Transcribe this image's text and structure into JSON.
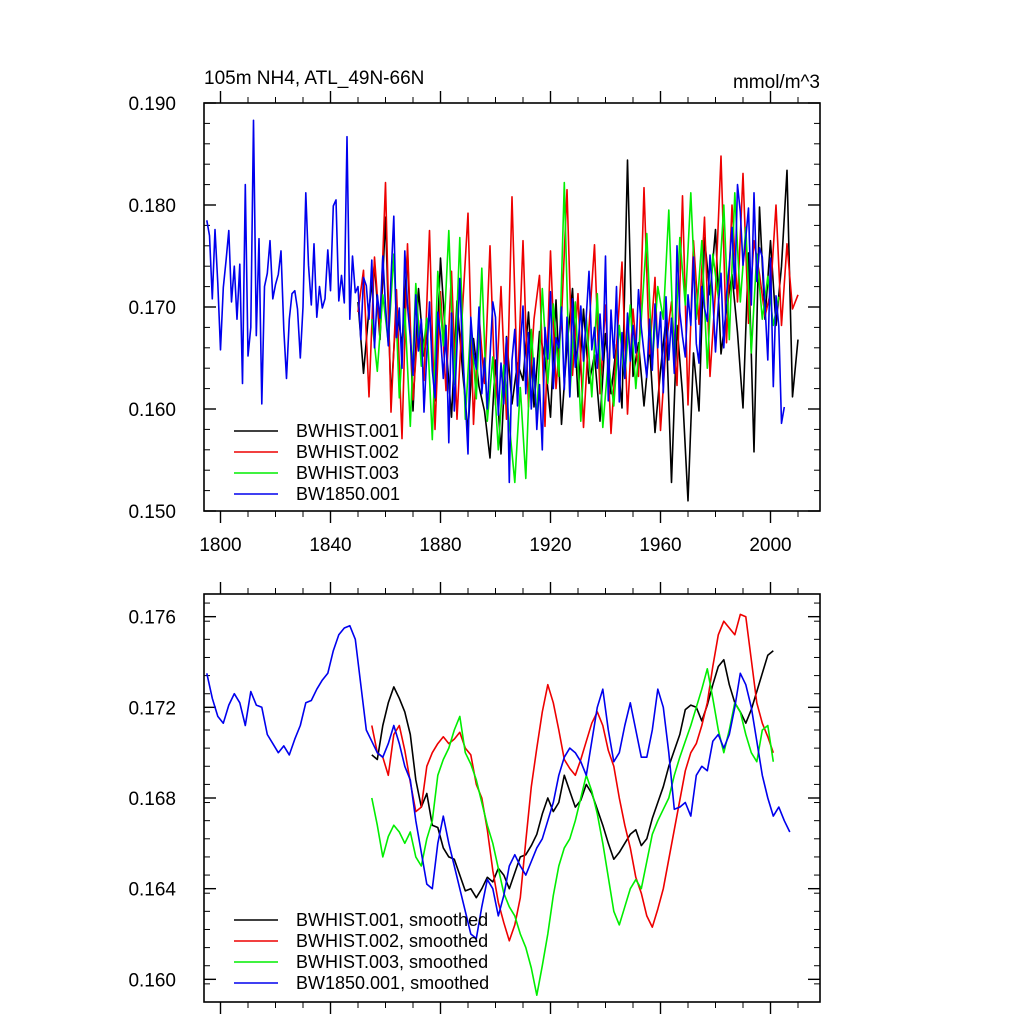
{
  "colors": {
    "BWHIST.001": "#000000",
    "BWHIST.002": "#ee0000",
    "BWHIST.003": "#00ee00",
    "BW1850.001": "#0000ee"
  },
  "chart_data": [
    {
      "type": "line",
      "title": "105m NH4, ATL_49N-66N",
      "units": "mmol/m^3",
      "xlabel": "",
      "ylabel": "",
      "xlim": [
        1794,
        2018
      ],
      "ylim": [
        0.15,
        0.19
      ],
      "xticks": [
        1800,
        1840,
        1880,
        1920,
        1960,
        2000
      ],
      "yticks": [
        0.15,
        0.16,
        0.17,
        0.18,
        0.19
      ],
      "ytick_labels": [
        "0.150",
        "0.160",
        "0.170",
        "0.180",
        "0.190"
      ],
      "legend": [
        "BWHIST.001",
        "BWHIST.002",
        "BWHIST.003",
        "BW1850.001"
      ],
      "legend_position": "bottom-left",
      "series": [
        {
          "name": "BWHIST.001",
          "x_start": 1850,
          "x_step": 2,
          "values": [
            0.1705,
            0.1635,
            0.1698,
            0.1742,
            0.1668,
            0.1788,
            0.161,
            0.1703,
            0.1662,
            0.1755,
            0.1598,
            0.1718,
            0.1652,
            0.1695,
            0.1608,
            0.1748,
            0.1663,
            0.1592,
            0.1706,
            0.1638,
            0.1578,
            0.1669,
            0.1622,
            0.1598,
            0.1552,
            0.1648,
            0.1556,
            0.1671,
            0.1605,
            0.1645,
            0.1628,
            0.1695,
            0.1602,
            0.1676,
            0.1648,
            0.1592,
            0.1707,
            0.1585,
            0.1662,
            0.1718,
            0.1612,
            0.1698,
            0.1625,
            0.1653,
            0.1588,
            0.1674,
            0.1615,
            0.1663,
            0.1601,
            0.1844,
            0.1632,
            0.1665,
            0.1603,
            0.1662,
            0.1577,
            0.1638,
            0.1688,
            0.1528,
            0.1682,
            0.1615,
            0.151,
            0.1655,
            0.1598,
            0.1768,
            0.1712,
            0.1776,
            0.1654,
            0.1697,
            0.1732,
            0.1675,
            0.1601,
            0.1753,
            0.1558,
            0.1798,
            0.1688,
            0.1765,
            0.1682,
            0.174,
            0.1834,
            0.1612,
            0.1668
          ]
        },
        {
          "name": "BWHIST.002",
          "x_start": 1850,
          "x_step": 2,
          "values": [
            0.1695,
            0.1736,
            0.1612,
            0.1749,
            0.1674,
            0.1822,
            0.1597,
            0.1717,
            0.1571,
            0.1762,
            0.1609,
            0.1687,
            0.1628,
            0.1775,
            0.158,
            0.1715,
            0.1618,
            0.1735,
            0.159,
            0.1698,
            0.1792,
            0.1585,
            0.1692,
            0.1625,
            0.176,
            0.1604,
            0.172,
            0.159,
            0.1808,
            0.1618,
            0.1765,
            0.1602,
            0.1688,
            0.1731,
            0.1583,
            0.1755,
            0.162,
            0.1689,
            0.1815,
            0.1633,
            0.1713,
            0.1582,
            0.168,
            0.1761,
            0.1615,
            0.1702,
            0.1576,
            0.1661,
            0.1744,
            0.1595,
            0.1698,
            0.1632,
            0.1817,
            0.1654,
            0.1729,
            0.1579,
            0.1662,
            0.1705,
            0.1623,
            0.1809,
            0.1604,
            0.1765,
            0.1683,
            0.1788,
            0.1632,
            0.1716,
            0.1848,
            0.1665,
            0.18,
            0.1705,
            0.1831,
            0.1684,
            0.1765,
            0.1732,
            0.1691,
            0.1714,
            0.18,
            0.1682,
            0.1762,
            0.1698,
            0.1712
          ]
        },
        {
          "name": "BWHIST.003",
          "x_start": 1855,
          "x_step": 2,
          "values": [
            0.1688,
            0.1637,
            0.1712,
            0.1665,
            0.1752,
            0.1611,
            0.1698,
            0.1583,
            0.1723,
            0.1642,
            0.1689,
            0.157,
            0.1735,
            0.1662,
            0.1775,
            0.1624,
            0.1768,
            0.159,
            0.1683,
            0.161,
            0.1738,
            0.1588,
            0.1651,
            0.156,
            0.1643,
            0.1585,
            0.1528,
            0.1621,
            0.1532,
            0.1678,
            0.1589,
            0.1718,
            0.1625,
            0.1703,
            0.1632,
            0.1822,
            0.1612,
            0.1705,
            0.1588,
            0.169,
            0.1612,
            0.1713,
            0.1582,
            0.1648,
            0.1603,
            0.1682,
            0.1631,
            0.1702,
            0.162,
            0.1688,
            0.1772,
            0.1643,
            0.172,
            0.1688,
            0.1795,
            0.1642,
            0.1768,
            0.1702,
            0.1812,
            0.1688,
            0.1765,
            0.164,
            0.1752,
            0.171,
            0.18,
            0.1668,
            0.1812,
            0.1705,
            0.1778,
            0.1655,
            0.1752,
            0.1688,
            0.173,
            0.1682,
            0.171
          ]
        },
        {
          "name": "BW1850.001",
          "x_start": 1795,
          "x_step": 1,
          "values": [
            0.1785,
            0.177,
            0.1708,
            0.1776,
            0.1723,
            0.1658,
            0.1719,
            0.1745,
            0.1775,
            0.1705,
            0.174,
            0.1688,
            0.1742,
            0.1625,
            0.182,
            0.1652,
            0.168,
            0.1883,
            0.1672,
            0.1767,
            0.1605,
            0.172,
            0.1733,
            0.1765,
            0.1708,
            0.1722,
            0.1732,
            0.1755,
            0.1678,
            0.163,
            0.1688,
            0.1713,
            0.1716,
            0.1698,
            0.165,
            0.17,
            0.1812,
            0.1741,
            0.1702,
            0.1762,
            0.169,
            0.172,
            0.1699,
            0.1708,
            0.1756,
            0.1716,
            0.1799,
            0.1805,
            0.1706,
            0.1731,
            0.1704,
            0.1867,
            0.1688,
            0.175,
            0.1714,
            0.172,
            0.1668,
            0.1729,
            0.1721,
            0.1688,
            0.1746,
            0.166,
            0.1712,
            0.1689,
            0.175,
            0.1701,
            0.1662,
            0.1728,
            0.1789,
            0.167,
            0.1699,
            0.164,
            0.1755,
            0.1701,
            0.167,
            0.1633,
            0.1712,
            0.1657,
            0.1688,
            0.1597,
            0.1654,
            0.1705,
            0.1638,
            0.1611,
            0.1695,
            0.1672,
            0.163,
            0.1682,
            0.1567,
            0.1694,
            0.1598,
            0.1662,
            0.1728,
            0.1655,
            0.161,
            0.1556,
            0.169,
            0.1655,
            0.1639,
            0.17,
            0.1615,
            0.165,
            0.16,
            0.1651,
            0.1705,
            0.169,
            0.1594,
            0.1645,
            0.1605,
            0.167,
            0.1528,
            0.1648,
            0.1678,
            0.1603,
            0.166,
            0.1701,
            0.1615,
            0.1675,
            0.16,
            0.165,
            0.158,
            0.1624,
            0.156,
            0.168,
            0.1649,
            0.1715,
            0.162,
            0.167,
            0.166,
            0.17,
            0.1619,
            0.169,
            0.1612,
            0.1708,
            0.1641,
            0.1661,
            0.1701,
            0.1647,
            0.1691,
            0.1735,
            0.1658,
            0.168,
            0.164,
            0.1693,
            0.1648,
            0.175,
            0.1608,
            0.1697,
            0.165,
            0.172,
            0.1607,
            0.1675,
            0.163,
            0.1694,
            0.1647,
            0.1682,
            0.1655,
            0.1717,
            0.168,
            0.1655,
            0.1631,
            0.1688,
            0.1638,
            0.1703,
            0.166,
            0.1695,
            0.1616,
            0.171,
            0.1648,
            0.1689,
            0.1635,
            0.176,
            0.1695,
            0.1671,
            0.1651,
            0.1712,
            0.1682,
            0.1749,
            0.1664,
            0.1645,
            0.172,
            0.1699,
            0.1686,
            0.1751,
            0.171,
            0.1656,
            0.1702,
            0.1733,
            0.166,
            0.1712,
            0.1741,
            0.1778,
            0.1718,
            0.182,
            0.1793,
            0.1741,
            0.1768,
            0.1797,
            0.1702,
            0.1812,
            0.1725,
            0.1758,
            0.1749,
            0.1702,
            0.1648,
            0.1748,
            0.1622,
            0.1711,
            0.1681,
            0.1586,
            0.1602
          ]
        }
      ]
    },
    {
      "type": "line",
      "title": "",
      "xlabel": "",
      "ylabel": "",
      "xlim": [
        1794,
        2018
      ],
      "ylim": [
        0.159,
        0.177
      ],
      "xticks": [
        1800,
        1840,
        1880,
        1920,
        1960,
        2000
      ],
      "yticks": [
        0.16,
        0.164,
        0.168,
        0.172,
        0.176
      ],
      "ytick_labels": [
        "0.160",
        "0.164",
        "0.168",
        "0.172",
        "0.176"
      ],
      "legend": [
        "BWHIST.001, smoothed",
        "BWHIST.002, smoothed",
        "BWHIST.003, smoothed",
        "BW1850.001, smoothed"
      ],
      "legend_position": "bottom-left",
      "series": [
        {
          "name": "BWHIST.001, smoothed",
          "x_start": 1855,
          "x_step": 2,
          "values": [
            0.1699,
            0.1697,
            0.1712,
            0.1722,
            0.1729,
            0.1724,
            0.1718,
            0.1708,
            0.1688,
            0.1676,
            0.1682,
            0.1668,
            0.1667,
            0.1658,
            0.1654,
            0.1653,
            0.1646,
            0.1639,
            0.164,
            0.1636,
            0.164,
            0.1645,
            0.1643,
            0.1649,
            0.1646,
            0.164,
            0.1647,
            0.1654,
            0.1655,
            0.1659,
            0.1664,
            0.1673,
            0.168,
            0.1674,
            0.1678,
            0.169,
            0.1683,
            0.1676,
            0.1679,
            0.1686,
            0.1682,
            0.1675,
            0.1668,
            0.166,
            0.1653,
            0.1656,
            0.166,
            0.1664,
            0.1666,
            0.1659,
            0.1662,
            0.1671,
            0.1678,
            0.1685,
            0.1694,
            0.1701,
            0.1708,
            0.1719,
            0.1721,
            0.172,
            0.1714,
            0.1721,
            0.173,
            0.1738,
            0.1741,
            0.173,
            0.1722,
            0.1718,
            0.1713,
            0.1719,
            0.1727,
            0.1735,
            0.1743,
            0.1745
          ]
        },
        {
          "name": "BWHIST.002, smoothed",
          "x_start": 1855,
          "x_step": 2,
          "values": [
            0.1712,
            0.17,
            0.1698,
            0.169,
            0.1708,
            0.1712,
            0.1701,
            0.1687,
            0.1674,
            0.1676,
            0.1694,
            0.17,
            0.1704,
            0.1707,
            0.1704,
            0.1706,
            0.1709,
            0.1702,
            0.1699,
            0.1686,
            0.168,
            0.1666,
            0.1648,
            0.1634,
            0.1625,
            0.1617,
            0.1624,
            0.1636,
            0.1661,
            0.1685,
            0.1702,
            0.1718,
            0.173,
            0.1722,
            0.171,
            0.1697,
            0.1693,
            0.169,
            0.1697,
            0.1705,
            0.1713,
            0.1718,
            0.1712,
            0.1701,
            0.1694,
            0.168,
            0.1668,
            0.1658,
            0.1645,
            0.1638,
            0.1628,
            0.1623,
            0.1631,
            0.164,
            0.1653,
            0.1666,
            0.1679,
            0.1692,
            0.17,
            0.1704,
            0.1712,
            0.1722,
            0.1738,
            0.1752,
            0.1758,
            0.1755,
            0.1752,
            0.1761,
            0.176,
            0.1741,
            0.1722,
            0.1713,
            0.1707,
            0.17
          ]
        },
        {
          "name": "BWHIST.003, smoothed",
          "x_start": 1855,
          "x_step": 2,
          "values": [
            0.168,
            0.1668,
            0.1654,
            0.1663,
            0.1668,
            0.1665,
            0.166,
            0.1665,
            0.1654,
            0.165,
            0.1662,
            0.167,
            0.169,
            0.1697,
            0.1702,
            0.171,
            0.1716,
            0.17,
            0.1695,
            0.1688,
            0.1678,
            0.1668,
            0.166,
            0.1649,
            0.1638,
            0.1632,
            0.1628,
            0.162,
            0.1614,
            0.1605,
            0.1593,
            0.1606,
            0.162,
            0.1637,
            0.165,
            0.1658,
            0.1662,
            0.167,
            0.168,
            0.169,
            0.1683,
            0.1673,
            0.166,
            0.1645,
            0.163,
            0.1624,
            0.1632,
            0.164,
            0.1644,
            0.164,
            0.1652,
            0.1664,
            0.167,
            0.1675,
            0.168,
            0.169,
            0.1698,
            0.1705,
            0.1712,
            0.172,
            0.1728,
            0.1737,
            0.1724,
            0.171,
            0.17,
            0.171,
            0.1722,
            0.1718,
            0.1708,
            0.17,
            0.1696,
            0.171,
            0.1712,
            0.1696
          ]
        },
        {
          "name": "BW1850.001, smoothed",
          "x_start": 1795,
          "x_step": 2,
          "values": [
            0.1735,
            0.1724,
            0.1716,
            0.1713,
            0.1721,
            0.1726,
            0.1722,
            0.1712,
            0.1727,
            0.1721,
            0.172,
            0.1708,
            0.1704,
            0.17,
            0.1703,
            0.1699,
            0.1706,
            0.1712,
            0.1722,
            0.1723,
            0.1728,
            0.1732,
            0.1735,
            0.1745,
            0.1752,
            0.1755,
            0.1756,
            0.175,
            0.173,
            0.171,
            0.1705,
            0.17,
            0.1698,
            0.1704,
            0.1712,
            0.1704,
            0.1694,
            0.1688,
            0.167,
            0.1656,
            0.1642,
            0.164,
            0.166,
            0.1672,
            0.166,
            0.165,
            0.164,
            0.163,
            0.162,
            0.1618,
            0.1632,
            0.1644,
            0.164,
            0.1628,
            0.1637,
            0.165,
            0.1655,
            0.165,
            0.1646,
            0.1652,
            0.1658,
            0.1662,
            0.167,
            0.1678,
            0.169,
            0.1698,
            0.1702,
            0.17,
            0.1696,
            0.169,
            0.1705,
            0.172,
            0.1728,
            0.171,
            0.1696,
            0.17,
            0.1712,
            0.1722,
            0.171,
            0.1698,
            0.1698,
            0.171,
            0.1728,
            0.172,
            0.17,
            0.1675,
            0.1676,
            0.1678,
            0.1672,
            0.169,
            0.1694,
            0.1692,
            0.1705,
            0.1708,
            0.1702,
            0.1708,
            0.172,
            0.1735,
            0.173,
            0.172,
            0.1705,
            0.169,
            0.168,
            0.1672,
            0.1676,
            0.167,
            0.1665
          ]
        }
      ]
    }
  ]
}
